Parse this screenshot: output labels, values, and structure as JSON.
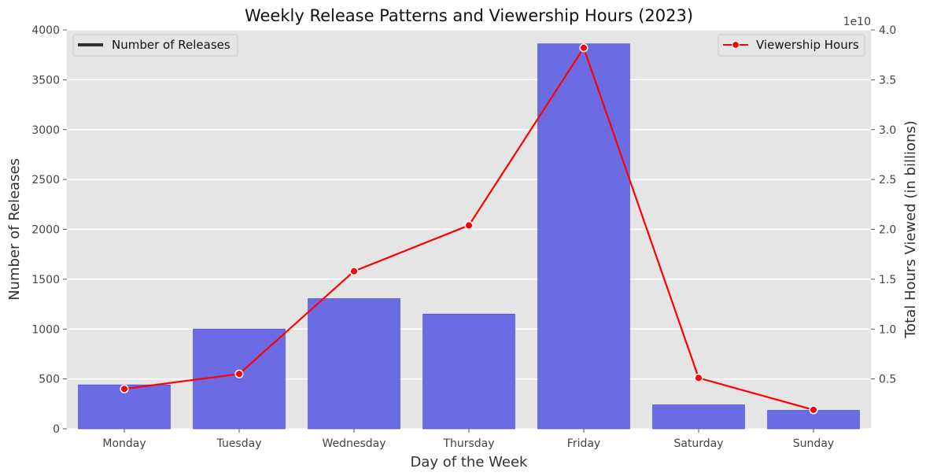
{
  "chart_data": {
    "type": "bar",
    "title": "Weekly Release Patterns and Viewership Hours (2023)",
    "xlabel": "Day of the Week",
    "ylabel": "Number of Releases",
    "y2label": "Total Hours Viewed (in billions)",
    "y2_offset_label": "1e10",
    "categories": [
      "Monday",
      "Tuesday",
      "Wednesday",
      "Thursday",
      "Friday",
      "Saturday",
      "Sunday"
    ],
    "ylim": [
      0,
      4000
    ],
    "yticks": [
      0,
      500,
      1000,
      1500,
      2000,
      2500,
      3000,
      3500,
      4000
    ],
    "y2lim": [
      0,
      4.0
    ],
    "y2ticks": [
      0.5,
      1.0,
      1.5,
      2.0,
      2.5,
      3.0,
      3.5,
      4.0
    ],
    "y2tick_labels": [
      "0.5",
      "1.0",
      "1.5",
      "2.0",
      "2.5",
      "3.0",
      "3.5",
      "4.0"
    ],
    "series": [
      {
        "name": "Number of Releases",
        "type": "bar",
        "axis": "left",
        "color": "#6b6be4",
        "values": [
          440,
          1000,
          1305,
          1150,
          3860,
          240,
          185
        ]
      },
      {
        "name": "Viewership Hours",
        "type": "line",
        "axis": "right",
        "color": "#ff0000",
        "values": [
          0.4,
          0.55,
          1.58,
          2.04,
          3.82,
          0.51,
          0.19
        ]
      }
    ],
    "grid": true,
    "legends": [
      {
        "label": "Number of Releases",
        "placement": "top-left",
        "swatch": "line",
        "color": "#333333"
      },
      {
        "label": "Viewership Hours",
        "placement": "top-right",
        "swatch": "line-marker",
        "color": "#ff0000"
      }
    ],
    "colors": {
      "plot_background": "#e5e5e5",
      "grid": "#ffffff"
    }
  }
}
